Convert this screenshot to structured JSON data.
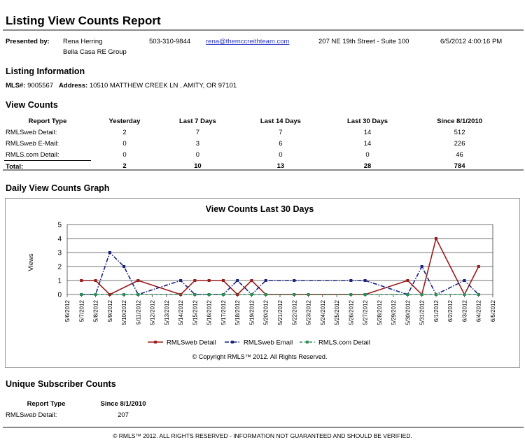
{
  "report": {
    "title": "Listing View Counts Report"
  },
  "presented": {
    "label": "Presented by:",
    "agent_name": "Rena Herring",
    "company": "Bella Casa RE Group",
    "phone": "503-310-9844",
    "email": "rena@themccreithteam.com",
    "office_address": "207 NE 19th Street - Suite 100",
    "datetime": "6/5/2012 4:00:16 PM"
  },
  "listing": {
    "heading": "Listing Information",
    "mls_label": "MLS#:",
    "mls_value": "9005567",
    "address_label": "Address:",
    "address_value": "10510 MATTHEW CREEK LN , AMITY, OR 97101"
  },
  "view_counts": {
    "heading": "View Counts",
    "columns": [
      "Report Type",
      "Yesterday",
      "Last 7 Days",
      "Last 14 Days",
      "Last 30 Days",
      "Since 8/1/2010"
    ],
    "rows": [
      {
        "type_prefix": "RMLS",
        "type_italic": "web",
        "type_suffix": " Detail:",
        "values": [
          "2",
          "7",
          "7",
          "14",
          "512"
        ]
      },
      {
        "type_prefix": "RMLS",
        "type_italic": "web",
        "type_suffix": " E-Mail:",
        "values": [
          "0",
          "3",
          "6",
          "14",
          "226"
        ]
      },
      {
        "type_prefix": "RMLS.com Detail:",
        "type_italic": "",
        "type_suffix": "",
        "values": [
          "0",
          "0",
          "0",
          "0",
          "46"
        ]
      }
    ],
    "total": {
      "label": "Total:",
      "values": [
        "2",
        "10",
        "13",
        "28",
        "784"
      ]
    }
  },
  "graph": {
    "heading": "Daily View Counts Graph",
    "copyright": "© Copyright RMLS™ 2012.  All Rights Reserved."
  },
  "chart_data": {
    "type": "line",
    "title": "View Counts Last 30 Days",
    "ylabel": "Views",
    "xlabel": "",
    "ylim": [
      0,
      5
    ],
    "yticks": [
      0,
      1,
      2,
      3,
      4,
      5
    ],
    "grid": true,
    "legend_placement": "bottom",
    "x": [
      "5/6/2012",
      "5/7/2012",
      "5/8/2012",
      "5/9/2012",
      "5/10/2012",
      "5/11/2012",
      "5/12/2012",
      "5/13/2012",
      "5/14/2012",
      "5/15/2012",
      "5/16/2012",
      "5/17/2012",
      "5/18/2012",
      "5/19/2012",
      "5/20/2012",
      "5/21/2012",
      "5/22/2012",
      "5/23/2012",
      "5/24/2012",
      "5/25/2012",
      "5/26/2012",
      "5/27/2012",
      "5/28/2012",
      "5/29/2012",
      "5/30/2012",
      "5/31/2012",
      "6/1/2012",
      "6/2/2012",
      "6/3/2012",
      "6/4/2012",
      "6/5/2012"
    ],
    "series": [
      {
        "name": "RMLSweb Detail",
        "color": "#9b1a1a",
        "dash": "solid",
        "points": [
          [
            "5/7/2012",
            1
          ],
          [
            "5/8/2012",
            1
          ],
          [
            "5/9/2012",
            0
          ],
          [
            "5/11/2012",
            1
          ],
          [
            "5/14/2012",
            0
          ],
          [
            "5/15/2012",
            1
          ],
          [
            "5/16/2012",
            1
          ],
          [
            "5/17/2012",
            1
          ],
          [
            "5/18/2012",
            0
          ],
          [
            "5/19/2012",
            1
          ],
          [
            "5/20/2012",
            0
          ],
          [
            "5/27/2012",
            0
          ],
          [
            "5/30/2012",
            1
          ],
          [
            "5/31/2012",
            0
          ],
          [
            "6/1/2012",
            4
          ],
          [
            "6/3/2012",
            0
          ],
          [
            "6/4/2012",
            2
          ]
        ]
      },
      {
        "name": "RMLSweb Email",
        "color": "#1a237e",
        "dash": "dashdot",
        "points": [
          [
            "5/7/2012",
            0
          ],
          [
            "5/8/2012",
            0
          ],
          [
            "5/9/2012",
            3
          ],
          [
            "5/10/2012",
            2
          ],
          [
            "5/11/2012",
            0
          ],
          [
            "5/14/2012",
            1
          ],
          [
            "5/15/2012",
            0
          ],
          [
            "5/17/2012",
            0
          ],
          [
            "5/18/2012",
            1
          ],
          [
            "5/19/2012",
            0
          ],
          [
            "5/20/2012",
            1
          ],
          [
            "5/22/2012",
            1
          ],
          [
            "5/26/2012",
            1
          ],
          [
            "5/27/2012",
            1
          ],
          [
            "5/30/2012",
            0
          ],
          [
            "5/31/2012",
            2
          ],
          [
            "6/1/2012",
            0
          ],
          [
            "6/3/2012",
            1
          ],
          [
            "6/4/2012",
            0
          ]
        ]
      },
      {
        "name": "RMLS.com Detail",
        "color": "#2e8b57",
        "dash": "dashed",
        "points": [
          [
            "5/7/2012",
            0
          ],
          [
            "5/8/2012",
            0
          ],
          [
            "5/10/2012",
            0
          ],
          [
            "5/11/2012",
            0
          ],
          [
            "5/15/2012",
            0
          ],
          [
            "5/16/2012",
            0
          ],
          [
            "5/17/2012",
            0
          ],
          [
            "5/19/2012",
            0
          ],
          [
            "5/20/2012",
            0
          ],
          [
            "5/22/2012",
            0
          ],
          [
            "5/23/2012",
            0
          ],
          [
            "5/26/2012",
            0
          ],
          [
            "5/27/2012",
            0
          ],
          [
            "5/30/2012",
            0
          ],
          [
            "5/31/2012",
            0
          ],
          [
            "6/1/2012",
            0
          ],
          [
            "6/3/2012",
            0
          ],
          [
            "6/4/2012",
            0
          ]
        ]
      }
    ]
  },
  "unique": {
    "heading": "Unique Subscriber Counts",
    "columns": [
      "Report Type",
      "Since 8/1/2010"
    ],
    "row": {
      "type_prefix": "RMLS",
      "type_italic": "web",
      "type_suffix": " Detail:",
      "value": "207"
    }
  },
  "footer": {
    "text": "© RMLS™ 2012. ALL RIGHTS RESERVED - INFORMATION NOT GUARANTEED AND SHOULD BE VERIFIED."
  }
}
